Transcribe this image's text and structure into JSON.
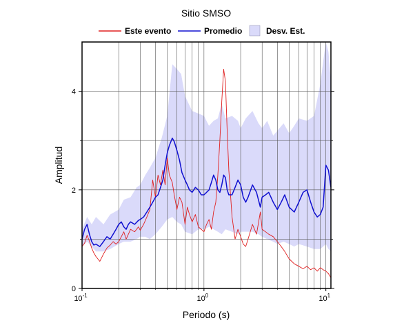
{
  "chart_data": {
    "type": "line",
    "title": "Sitio SMSO",
    "xlabel": "Periodo (s)",
    "ylabel": "Amplitud",
    "xscale": "log",
    "xlim": [
      0.1,
      11
    ],
    "ylim": [
      0,
      5
    ],
    "xticks": [
      {
        "value": 0.1,
        "base": "10",
        "exp": "-1"
      },
      {
        "value": 1,
        "base": "10",
        "exp": "0"
      },
      {
        "value": 10,
        "base": "10",
        "exp": "1"
      }
    ],
    "yticks": [
      {
        "value": 0,
        "label": "0"
      },
      {
        "value": 2,
        "label": "2"
      },
      {
        "value": 4,
        "label": "4"
      }
    ],
    "grid": true,
    "legend_position": "top",
    "series": [
      {
        "name": "Este evento",
        "kind": "line",
        "color": "#e02020",
        "x": [
          0.1,
          0.105,
          0.11,
          0.115,
          0.12,
          0.125,
          0.13,
          0.14,
          0.15,
          0.16,
          0.17,
          0.18,
          0.19,
          0.2,
          0.21,
          0.22,
          0.23,
          0.24,
          0.25,
          0.27,
          0.29,
          0.3,
          0.32,
          0.34,
          0.36,
          0.38,
          0.4,
          0.42,
          0.44,
          0.46,
          0.48,
          0.5,
          0.52,
          0.55,
          0.57,
          0.6,
          0.63,
          0.66,
          0.7,
          0.73,
          0.76,
          0.8,
          0.85,
          0.9,
          0.95,
          1.0,
          1.05,
          1.1,
          1.15,
          1.2,
          1.25,
          1.3,
          1.35,
          1.4,
          1.45,
          1.5,
          1.55,
          1.6,
          1.7,
          1.8,
          1.9,
          2.0,
          2.1,
          2.2,
          2.3,
          2.5,
          2.7,
          2.9,
          3.0,
          3.2,
          3.4,
          3.7,
          4.0,
          4.3,
          4.6,
          5.0,
          5.5,
          6.0,
          6.5,
          7.0,
          7.5,
          8.0,
          8.5,
          9.0,
          9.5,
          10.0,
          10.5,
          11.0
        ],
        "values": [
          0.85,
          0.92,
          1.08,
          0.96,
          0.82,
          0.72,
          0.65,
          0.55,
          0.7,
          0.82,
          0.88,
          0.95,
          0.9,
          0.95,
          1.05,
          1.15,
          1.0,
          1.1,
          1.2,
          1.15,
          1.25,
          1.18,
          1.3,
          1.45,
          1.6,
          2.2,
          1.85,
          2.3,
          2.1,
          2.4,
          2.1,
          2.65,
          2.3,
          2.15,
          1.9,
          1.6,
          1.85,
          1.75,
          1.3,
          1.65,
          1.5,
          1.35,
          1.5,
          1.25,
          1.2,
          1.15,
          1.3,
          1.4,
          1.2,
          1.55,
          1.75,
          2.3,
          3.0,
          3.8,
          4.45,
          4.2,
          3.2,
          2.4,
          1.45,
          1.0,
          1.2,
          1.05,
          0.9,
          0.85,
          1.0,
          1.3,
          1.1,
          1.55,
          1.2,
          1.15,
          1.1,
          1.05,
          0.95,
          0.85,
          0.75,
          0.6,
          0.5,
          0.45,
          0.4,
          0.45,
          0.38,
          0.42,
          0.35,
          0.42,
          0.38,
          0.35,
          0.3,
          0.22
        ]
      },
      {
        "name": "Promedio",
        "kind": "line",
        "color": "#1010d0",
        "x": [
          0.1,
          0.105,
          0.11,
          0.115,
          0.12,
          0.125,
          0.13,
          0.14,
          0.15,
          0.16,
          0.17,
          0.18,
          0.19,
          0.2,
          0.21,
          0.22,
          0.23,
          0.24,
          0.25,
          0.27,
          0.29,
          0.3,
          0.32,
          0.34,
          0.36,
          0.38,
          0.4,
          0.42,
          0.44,
          0.46,
          0.48,
          0.5,
          0.52,
          0.55,
          0.57,
          0.6,
          0.63,
          0.66,
          0.7,
          0.73,
          0.76,
          0.8,
          0.85,
          0.9,
          0.95,
          1.0,
          1.05,
          1.1,
          1.15,
          1.2,
          1.25,
          1.3,
          1.35,
          1.4,
          1.45,
          1.5,
          1.55,
          1.6,
          1.7,
          1.8,
          1.9,
          2.0,
          2.1,
          2.2,
          2.3,
          2.5,
          2.7,
          2.9,
          3.0,
          3.2,
          3.4,
          3.7,
          4.0,
          4.3,
          4.6,
          5.0,
          5.5,
          6.0,
          6.5,
          7.0,
          7.5,
          8.0,
          8.5,
          9.0,
          9.5,
          10.0,
          10.5,
          11.0
        ],
        "values": [
          1.0,
          1.2,
          1.3,
          1.1,
          0.95,
          0.88,
          0.9,
          0.85,
          0.95,
          1.05,
          1.0,
          1.1,
          1.2,
          1.3,
          1.35,
          1.25,
          1.2,
          1.3,
          1.35,
          1.3,
          1.38,
          1.4,
          1.45,
          1.55,
          1.65,
          1.75,
          1.85,
          1.9,
          2.05,
          2.2,
          2.5,
          2.75,
          2.9,
          3.05,
          2.98,
          2.8,
          2.6,
          2.35,
          2.2,
          2.1,
          2.0,
          1.95,
          2.05,
          2.0,
          1.9,
          1.9,
          1.95,
          2.0,
          2.15,
          2.3,
          2.2,
          2.0,
          1.95,
          2.1,
          2.3,
          2.25,
          2.0,
          1.9,
          1.9,
          2.05,
          2.2,
          2.1,
          1.85,
          1.75,
          1.85,
          2.1,
          1.95,
          1.65,
          1.85,
          1.9,
          1.95,
          1.75,
          1.6,
          1.75,
          1.9,
          1.65,
          1.55,
          1.75,
          1.95,
          2.0,
          1.75,
          1.55,
          1.45,
          1.5,
          1.65,
          2.5,
          2.4,
          2.05
        ]
      },
      {
        "name": "Desv. Est.",
        "kind": "band",
        "color": "#dadafa",
        "x": [
          0.1,
          0.11,
          0.12,
          0.13,
          0.15,
          0.17,
          0.2,
          0.22,
          0.25,
          0.28,
          0.3,
          0.33,
          0.36,
          0.4,
          0.45,
          0.5,
          0.55,
          0.6,
          0.65,
          0.7,
          0.8,
          0.9,
          1.0,
          1.1,
          1.2,
          1.3,
          1.4,
          1.5,
          1.7,
          1.9,
          2.0,
          2.2,
          2.5,
          2.8,
          3.0,
          3.3,
          3.7,
          4.0,
          4.5,
          5.0,
          5.5,
          6.0,
          7.0,
          8.0,
          9.0,
          9.5,
          10.0,
          10.5,
          11.0
        ],
        "upper": [
          1.2,
          1.45,
          1.3,
          1.45,
          1.3,
          1.5,
          1.6,
          1.8,
          1.85,
          2.05,
          2.1,
          2.3,
          2.45,
          2.65,
          3.05,
          3.5,
          4.55,
          4.45,
          4.35,
          3.9,
          3.6,
          3.55,
          3.5,
          3.3,
          3.4,
          3.45,
          3.75,
          3.45,
          3.5,
          3.4,
          3.25,
          3.45,
          3.6,
          3.35,
          3.25,
          3.4,
          3.1,
          3.2,
          3.35,
          3.15,
          3.3,
          3.45,
          3.4,
          3.5,
          4.15,
          4.6,
          5.0,
          4.8,
          4.2
        ],
        "lower": [
          0.85,
          0.95,
          0.85,
          0.75,
          0.75,
          0.8,
          0.9,
          0.95,
          0.95,
          1.0,
          1.05,
          1.05,
          1.0,
          1.1,
          1.25,
          1.4,
          1.45,
          1.35,
          1.3,
          1.15,
          1.1,
          1.2,
          1.2,
          1.25,
          1.2,
          1.15,
          1.1,
          1.2,
          1.15,
          1.1,
          1.15,
          1.15,
          1.15,
          1.1,
          1.05,
          1.0,
          0.95,
          0.9,
          0.95,
          0.9,
          0.85,
          0.9,
          0.85,
          0.8,
          0.8,
          0.85,
          0.9,
          0.8,
          0.75
        ]
      }
    ]
  }
}
